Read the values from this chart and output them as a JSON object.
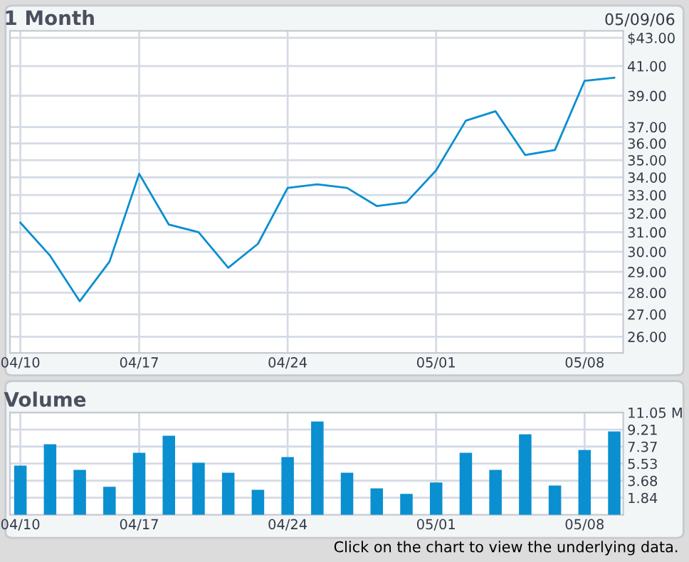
{
  "chart_data": [
    {
      "type": "line",
      "title": "1 Month",
      "subtitle": "05/09/06",
      "categories": [
        "04/10",
        null,
        null,
        null,
        "04/17",
        null,
        null,
        null,
        null,
        "04/24",
        null,
        null,
        null,
        null,
        "05/01",
        null,
        null,
        null,
        null,
        "05/08",
        null
      ],
      "series": [
        {
          "color": "#0a8fd0",
          "values": [
            31.5,
            29.8,
            27.6,
            29.5,
            34.2,
            31.4,
            31.0,
            29.2,
            30.4,
            33.4,
            33.6,
            33.4,
            32.4,
            32.6,
            34.4,
            37.4,
            38.0,
            35.3,
            35.6,
            40.0,
            40.2
          ]
        }
      ],
      "log": true,
      "ylim": [
        25.3,
        43.5
      ],
      "yticks": [
        {
          "value": 26,
          "label": "26.00"
        },
        {
          "value": 27,
          "label": "27.00"
        },
        {
          "value": 28,
          "label": "28.00"
        },
        {
          "value": 29,
          "label": "29.00"
        },
        {
          "value": 30,
          "label": "30.00"
        },
        {
          "value": 31,
          "label": "31.00"
        },
        {
          "value": 32,
          "label": "32.00"
        },
        {
          "value": 33,
          "label": "33.00"
        },
        {
          "value": 34,
          "label": "34.00"
        },
        {
          "value": 35,
          "label": "35.00"
        },
        {
          "value": 36,
          "label": "36.00"
        },
        {
          "value": 37,
          "label": "37.00"
        },
        {
          "value": 39,
          "label": "39.00"
        },
        {
          "value": 41,
          "label": "41.00"
        },
        {
          "value": 43,
          "label": "$43.00"
        }
      ],
      "grid": true,
      "marker": "none",
      "line_style": "solid"
    },
    {
      "type": "bar",
      "title": "Volume",
      "categories": [
        "04/10",
        null,
        null,
        null,
        "04/17",
        null,
        null,
        null,
        null,
        "04/24",
        null,
        null,
        null,
        null,
        "05/01",
        null,
        null,
        null,
        null,
        "05/08",
        null
      ],
      "series": [
        {
          "color": "#0a8fd0",
          "values": [
            5.32,
            7.62,
            4.86,
            3.02,
            6.7,
            8.54,
            5.62,
            4.55,
            2.71,
            6.24,
            10.07,
            4.55,
            2.86,
            2.25,
            3.48,
            6.7,
            4.86,
            8.69,
            3.17,
            7.0,
            9.0
          ]
        }
      ],
      "ylim": [
        0,
        11.05
      ],
      "yticks": [
        {
          "value": 1.84,
          "label": "1.84"
        },
        {
          "value": 3.68,
          "label": "3.68"
        },
        {
          "value": 5.53,
          "label": "5.53"
        },
        {
          "value": 7.37,
          "label": "7.37"
        },
        {
          "value": 9.21,
          "label": "9.21"
        },
        {
          "value": 11.05,
          "label": "11.05 M"
        }
      ],
      "grid": true,
      "annotations": [
        "Click on the chart to view the underlying data."
      ]
    }
  ]
}
